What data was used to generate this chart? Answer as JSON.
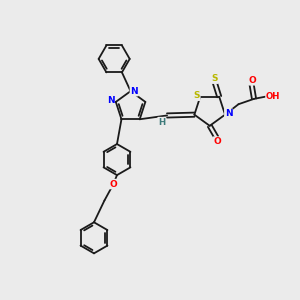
{
  "bg_color": "#ebebeb",
  "atom_colors": {
    "S": "#b8b800",
    "N": "#0000ff",
    "O": "#ff0000",
    "C": "#000000",
    "H": "#3d7a7a"
  },
  "bond_color": "#1a1a1a",
  "bond_lw": 1.3,
  "figsize": [
    3.0,
    3.0
  ],
  "dpi": 100
}
